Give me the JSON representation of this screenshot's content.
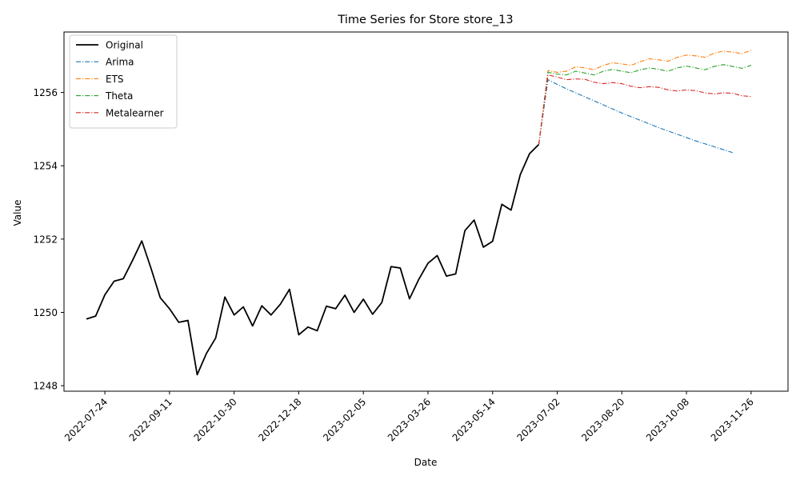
{
  "chart_data": {
    "type": "line",
    "title": "Time Series for Store store_13",
    "xlabel": "Date",
    "ylabel": "Value",
    "x_ticks": [
      "2022-07-24",
      "2022-09-11",
      "2022-10-30",
      "2022-12-18",
      "2023-02-05",
      "2023-03-26",
      "2023-05-14",
      "2023-07-02",
      "2023-08-20",
      "2023-10-08",
      "2023-11-26"
    ],
    "y_ticks": [
      1248,
      1250,
      1252,
      1254,
      1256
    ],
    "xlim": [
      "2022-06-23",
      "2023-12-24"
    ],
    "ylim": [
      1247.85,
      1257.65
    ],
    "grid": false,
    "legend_position": "upper-left",
    "series": [
      {
        "name": "Original",
        "color": "#000000",
        "style": "solid",
        "points": [
          [
            "2022-07-10",
            1249.82
          ],
          [
            "2022-07-17",
            1249.9
          ],
          [
            "2022-07-24",
            1250.48
          ],
          [
            "2022-07-31",
            1250.85
          ],
          [
            "2022-08-07",
            1250.92
          ],
          [
            "2022-08-14",
            1251.42
          ],
          [
            "2022-08-21",
            1251.95
          ],
          [
            "2022-08-28",
            1251.2
          ],
          [
            "2022-09-04",
            1250.4
          ],
          [
            "2022-09-11",
            1250.1
          ],
          [
            "2022-09-18",
            1249.73
          ],
          [
            "2022-09-25",
            1249.78
          ],
          [
            "2022-10-02",
            1248.3
          ],
          [
            "2022-10-09",
            1248.88
          ],
          [
            "2022-10-16",
            1249.3
          ],
          [
            "2022-10-23",
            1250.42
          ],
          [
            "2022-10-30",
            1249.93
          ],
          [
            "2022-11-06",
            1250.15
          ],
          [
            "2022-11-13",
            1249.63
          ],
          [
            "2022-11-20",
            1250.18
          ],
          [
            "2022-11-27",
            1249.93
          ],
          [
            "2022-12-04",
            1250.22
          ],
          [
            "2022-12-11",
            1250.63
          ],
          [
            "2022-12-18",
            1249.39
          ],
          [
            "2022-12-25",
            1249.6
          ],
          [
            "2023-01-01",
            1249.5
          ],
          [
            "2023-01-08",
            1250.17
          ],
          [
            "2023-01-15",
            1250.1
          ],
          [
            "2023-01-22",
            1250.47
          ],
          [
            "2023-01-29",
            1250.0
          ],
          [
            "2023-02-05",
            1250.36
          ],
          [
            "2023-02-12",
            1249.95
          ],
          [
            "2023-02-19",
            1250.27
          ],
          [
            "2023-02-26",
            1251.25
          ],
          [
            "2023-03-05",
            1251.21
          ],
          [
            "2023-03-12",
            1250.37
          ],
          [
            "2023-03-19",
            1250.9
          ],
          [
            "2023-03-26",
            1251.34
          ],
          [
            "2023-04-02",
            1251.55
          ],
          [
            "2023-04-09",
            1250.99
          ],
          [
            "2023-04-16",
            1251.05
          ],
          [
            "2023-04-23",
            1252.23
          ],
          [
            "2023-04-30",
            1252.52
          ],
          [
            "2023-05-07",
            1251.78
          ],
          [
            "2023-05-14",
            1251.94
          ],
          [
            "2023-05-21",
            1252.95
          ],
          [
            "2023-05-28",
            1252.79
          ],
          [
            "2023-06-04",
            1253.76
          ],
          [
            "2023-06-11",
            1254.33
          ],
          [
            "2023-06-18",
            1254.58
          ]
        ]
      },
      {
        "name": "Arima",
        "color": "#1f77b4",
        "style": "dashdot",
        "points": [
          [
            "2023-06-18",
            1254.58
          ],
          [
            "2023-06-25",
            1256.35
          ],
          [
            "2023-07-02",
            1256.22
          ],
          [
            "2023-07-09",
            1256.1
          ],
          [
            "2023-07-16",
            1255.99
          ],
          [
            "2023-07-23",
            1255.88
          ],
          [
            "2023-07-30",
            1255.77
          ],
          [
            "2023-08-06",
            1255.66
          ],
          [
            "2023-08-13",
            1255.55
          ],
          [
            "2023-08-20",
            1255.44
          ],
          [
            "2023-08-27",
            1255.34
          ],
          [
            "2023-09-03",
            1255.24
          ],
          [
            "2023-09-10",
            1255.14
          ],
          [
            "2023-09-17",
            1255.04
          ],
          [
            "2023-09-24",
            1254.95
          ],
          [
            "2023-10-01",
            1254.86
          ],
          [
            "2023-10-08",
            1254.77
          ],
          [
            "2023-10-15",
            1254.68
          ],
          [
            "2023-10-22",
            1254.6
          ],
          [
            "2023-10-29",
            1254.52
          ],
          [
            "2023-11-05",
            1254.44
          ],
          [
            "2023-11-12",
            1254.36
          ]
        ]
      },
      {
        "name": "ETS",
        "color": "#ff7f0e",
        "style": "dashdot",
        "points": [
          [
            "2023-06-18",
            1254.58
          ],
          [
            "2023-06-25",
            1256.6
          ],
          [
            "2023-07-02",
            1256.55
          ],
          [
            "2023-07-09",
            1256.58
          ],
          [
            "2023-07-16",
            1256.7
          ],
          [
            "2023-07-23",
            1256.67
          ],
          [
            "2023-07-30",
            1256.62
          ],
          [
            "2023-08-06",
            1256.74
          ],
          [
            "2023-08-13",
            1256.81
          ],
          [
            "2023-08-20",
            1256.78
          ],
          [
            "2023-08-27",
            1256.74
          ],
          [
            "2023-09-03",
            1256.84
          ],
          [
            "2023-09-10",
            1256.92
          ],
          [
            "2023-09-17",
            1256.89
          ],
          [
            "2023-09-24",
            1256.85
          ],
          [
            "2023-10-01",
            1256.96
          ],
          [
            "2023-10-08",
            1257.02
          ],
          [
            "2023-10-15",
            1257.0
          ],
          [
            "2023-10-22",
            1256.96
          ],
          [
            "2023-10-29",
            1257.07
          ],
          [
            "2023-11-05",
            1257.13
          ],
          [
            "2023-11-12",
            1257.1
          ],
          [
            "2023-11-19",
            1257.06
          ],
          [
            "2023-11-26",
            1257.15
          ]
        ]
      },
      {
        "name": "Theta",
        "color": "#2ca02c",
        "style": "dashdot",
        "points": [
          [
            "2023-06-18",
            1254.58
          ],
          [
            "2023-06-25",
            1256.55
          ],
          [
            "2023-07-02",
            1256.5
          ],
          [
            "2023-07-09",
            1256.48
          ],
          [
            "2023-07-16",
            1256.58
          ],
          [
            "2023-07-23",
            1256.53
          ],
          [
            "2023-07-30",
            1256.48
          ],
          [
            "2023-08-06",
            1256.58
          ],
          [
            "2023-08-13",
            1256.63
          ],
          [
            "2023-08-20",
            1256.58
          ],
          [
            "2023-08-27",
            1256.54
          ],
          [
            "2023-09-03",
            1256.62
          ],
          [
            "2023-09-10",
            1256.67
          ],
          [
            "2023-09-17",
            1256.63
          ],
          [
            "2023-09-24",
            1256.58
          ],
          [
            "2023-10-01",
            1256.67
          ],
          [
            "2023-10-08",
            1256.72
          ],
          [
            "2023-10-15",
            1256.67
          ],
          [
            "2023-10-22",
            1256.62
          ],
          [
            "2023-10-29",
            1256.71
          ],
          [
            "2023-11-05",
            1256.76
          ],
          [
            "2023-11-12",
            1256.71
          ],
          [
            "2023-11-19",
            1256.66
          ],
          [
            "2023-11-26",
            1256.74
          ]
        ]
      },
      {
        "name": "Metalearner",
        "color": "#d62728",
        "style": "dashdot",
        "points": [
          [
            "2023-06-18",
            1254.58
          ],
          [
            "2023-06-25",
            1256.48
          ],
          [
            "2023-07-02",
            1256.42
          ],
          [
            "2023-07-09",
            1256.35
          ],
          [
            "2023-07-16",
            1256.37
          ],
          [
            "2023-07-23",
            1256.36
          ],
          [
            "2023-07-30",
            1256.28
          ],
          [
            "2023-08-06",
            1256.24
          ],
          [
            "2023-08-13",
            1256.27
          ],
          [
            "2023-08-20",
            1256.24
          ],
          [
            "2023-08-27",
            1256.17
          ],
          [
            "2023-09-03",
            1256.13
          ],
          [
            "2023-09-10",
            1256.16
          ],
          [
            "2023-09-17",
            1256.14
          ],
          [
            "2023-09-24",
            1256.07
          ],
          [
            "2023-10-01",
            1256.04
          ],
          [
            "2023-10-08",
            1256.07
          ],
          [
            "2023-10-15",
            1256.05
          ],
          [
            "2023-10-22",
            1255.99
          ],
          [
            "2023-10-29",
            1255.96
          ],
          [
            "2023-11-05",
            1255.99
          ],
          [
            "2023-11-12",
            1255.98
          ],
          [
            "2023-11-19",
            1255.91
          ],
          [
            "2023-11-26",
            1255.89
          ]
        ]
      }
    ]
  }
}
